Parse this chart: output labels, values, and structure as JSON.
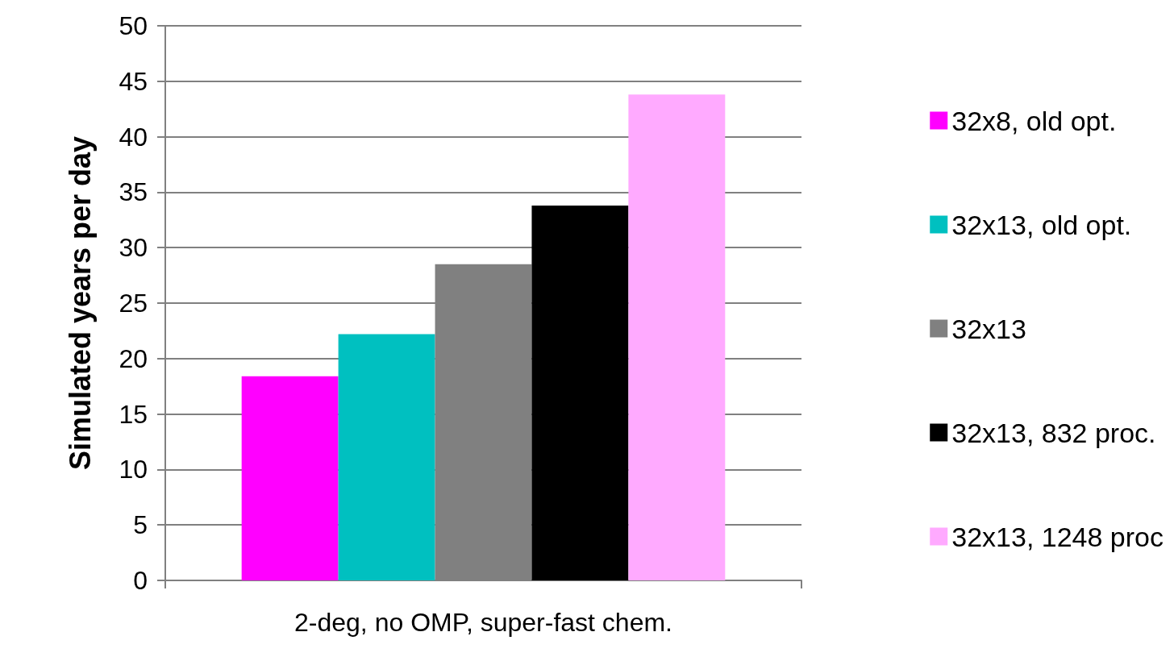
{
  "chart_data": {
    "type": "bar",
    "ylabel": "Simulated years per day",
    "categories": [
      "2-deg, no OMP, super-fast chem."
    ],
    "series": [
      {
        "name": "32x8, old opt.",
        "color": "#ff00ff",
        "values": [
          18.4
        ]
      },
      {
        "name": "32x13, old opt.",
        "color": "#00c0c0",
        "values": [
          22.2
        ]
      },
      {
        "name": "32x13",
        "color": "#808080",
        "values": [
          28.5
        ]
      },
      {
        "name": "32x13, 832 proc.",
        "color": "#000000",
        "values": [
          33.8
        ]
      },
      {
        "name": "32x13, 1248 proc",
        "color": "#ffaaff",
        "values": [
          43.8
        ]
      }
    ],
    "ylim": [
      0,
      50
    ],
    "yticks": [
      0,
      5,
      10,
      15,
      20,
      25,
      30,
      35,
      40,
      45,
      50
    ],
    "grid": "y",
    "legend": "right"
  }
}
